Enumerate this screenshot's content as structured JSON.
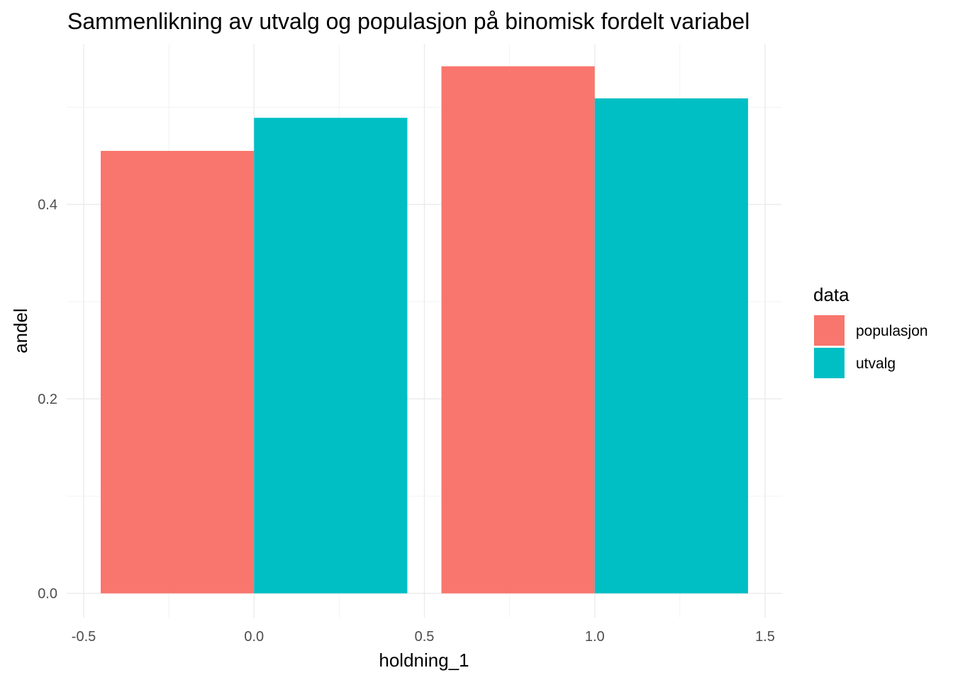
{
  "chart_data": {
    "type": "bar",
    "title": "Sammenlikning av utvalg og populasjon på binomisk fordelt variabel",
    "xlabel": "holdning_1",
    "ylabel": "andel",
    "x": [
      0,
      1
    ],
    "bar_width": 0.9,
    "position": "dodge",
    "xlim": [
      -0.55,
      1.55
    ],
    "ylim": [
      -0.025,
      0.565
    ],
    "x_ticks": [
      -0.5,
      0.0,
      0.5,
      1.0,
      1.5
    ],
    "x_tick_labels": [
      "-0.5",
      "0.0",
      "0.5",
      "1.0",
      "1.5"
    ],
    "y_ticks": [
      0.0,
      0.2,
      0.4
    ],
    "y_tick_labels": [
      "0.0",
      "0.2",
      "0.4"
    ],
    "grid": true,
    "legend": {
      "title": "data",
      "position": "right"
    },
    "series": [
      {
        "name": "populasjon",
        "color": "#F8766D",
        "values": [
          0.455,
          0.542
        ]
      },
      {
        "name": "utvalg",
        "color": "#00BFC4",
        "values": [
          0.489,
          0.509
        ]
      }
    ]
  }
}
